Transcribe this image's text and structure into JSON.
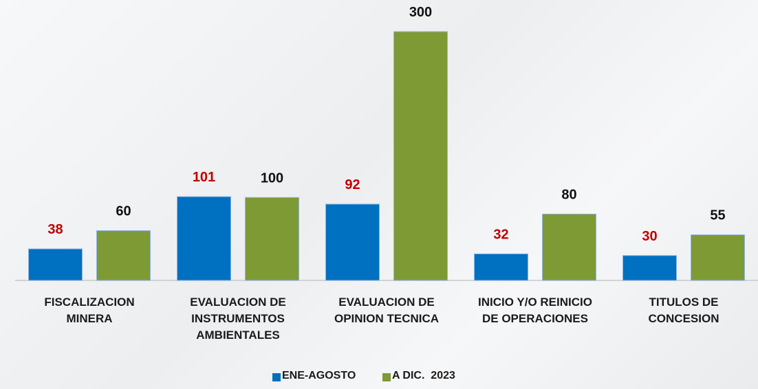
{
  "chart_data": {
    "type": "bar",
    "categories": [
      "FISCALIZACION\nMINERA",
      "EVALUACION DE\nINSTRUMENTOS\nAMBIENTALES",
      "EVALUACION DE\nOPINION TECNICA",
      "INICIO Y/O REINICIO\nDE OPERACIONES",
      "TITULOS DE\nCONCESION"
    ],
    "series": [
      {
        "name": "ENE-AGOSTO",
        "color": "#0070c0",
        "label_color": "#c00000",
        "values": [
          38,
          101,
          92,
          32,
          30
        ]
      },
      {
        "name": "A DIC.  2023",
        "color": "#7e9a35",
        "label_color": "#111111",
        "values": [
          60,
          100,
          300,
          80,
          55
        ]
      }
    ],
    "legend": "bottom"
  }
}
